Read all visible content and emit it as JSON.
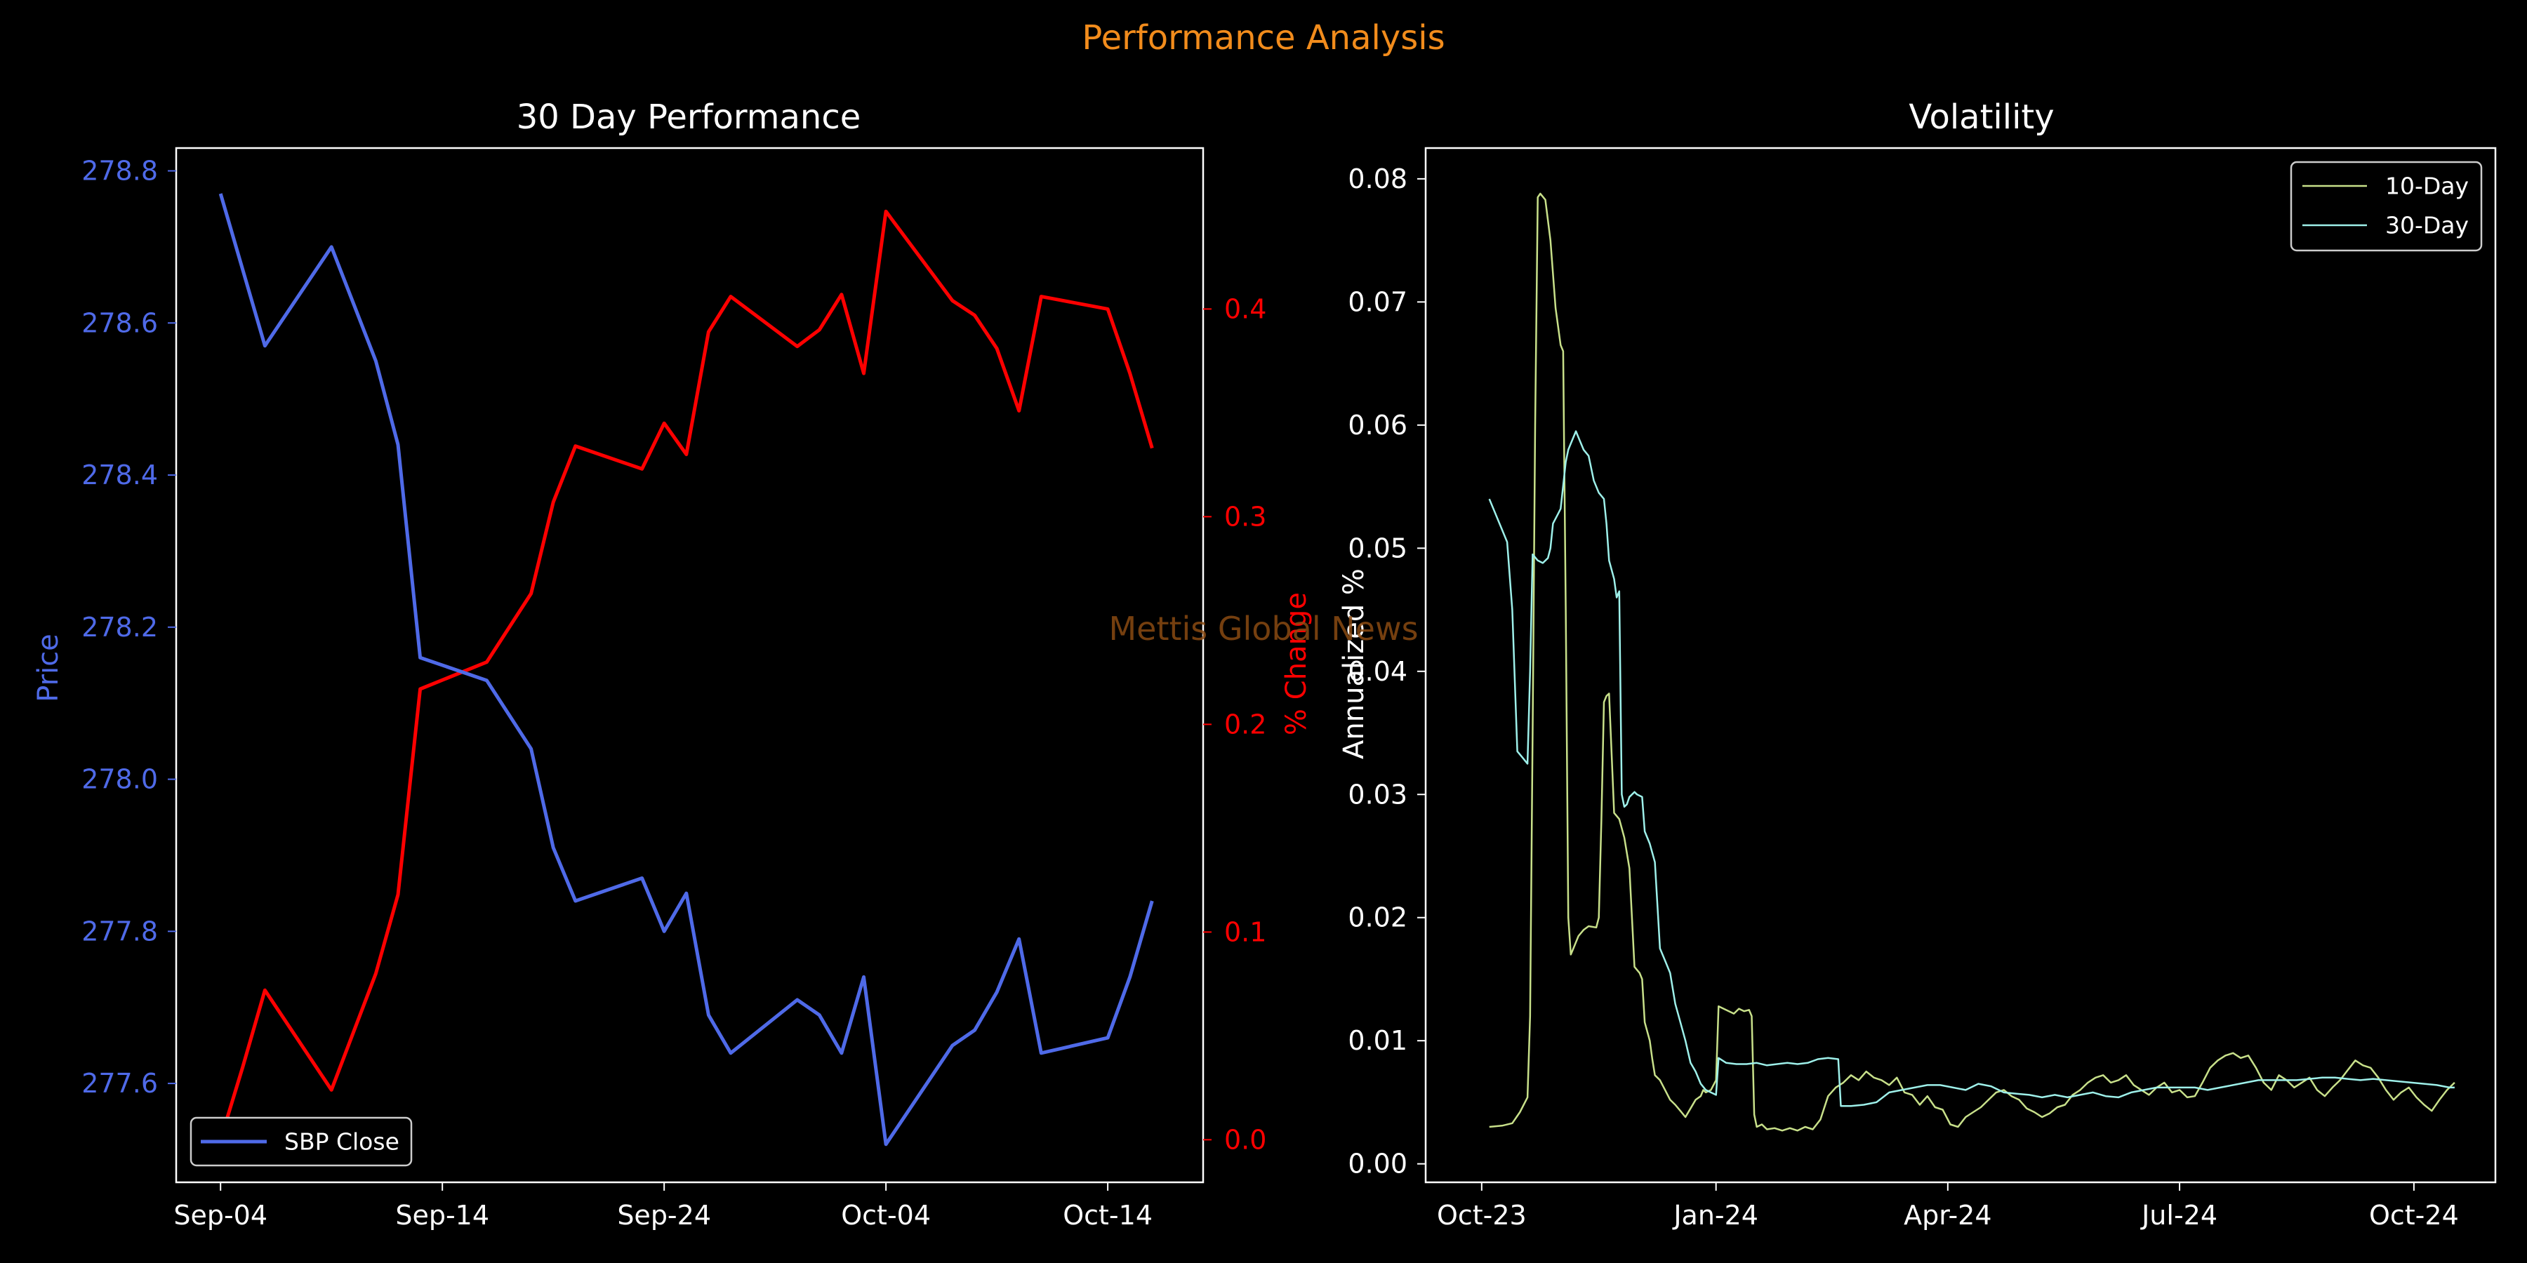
{
  "suptitle": "Performance Analysis",
  "watermark": "Mettis Global News",
  "colors": {
    "background": "#000000",
    "foreground": "#ffffff",
    "suptitle": "#f28c1c",
    "price": "#4f6ae8",
    "change": "#ff0000",
    "watermark": "#8a4a12",
    "vol10": "#c8e08a",
    "vol30": "#9ef0ea"
  },
  "chart_data": [
    {
      "type": "line",
      "title": "30 Day Performance",
      "xlabel": "",
      "ylabel": "Price",
      "ylabel_right": "% Change",
      "x_ticks": [
        "Sep-04",
        "Sep-14",
        "Sep-24",
        "Oct-04",
        "Oct-14"
      ],
      "x_tick_days": [
        0,
        10,
        20,
        30,
        40
      ],
      "x_range_days": [
        -2,
        44.3
      ],
      "x_origin_label": "Sep-04",
      "ylim": [
        277.47,
        278.83
      ],
      "yticks": [
        277.6,
        277.8,
        278.0,
        278.2,
        278.4,
        278.6,
        278.8
      ],
      "ylim_right": [
        -0.0205,
        0.4775
      ],
      "yticks_right": [
        0.0,
        0.1,
        0.2,
        0.3,
        0.4
      ],
      "legend": {
        "position": "lower-left",
        "entries": [
          "SBP Close"
        ]
      },
      "series": [
        {
          "name": "SBP Close",
          "axis": "left",
          "x": [
            0,
            1,
            2,
            5,
            7,
            8,
            9,
            12,
            14,
            15,
            16,
            19,
            20,
            21,
            22,
            23,
            26,
            27,
            28,
            29,
            30,
            33,
            34,
            35,
            36,
            37,
            40,
            41,
            42
          ],
          "values": [
            278.77,
            278.67,
            278.57,
            278.7,
            278.55,
            278.44,
            278.16,
            278.13,
            278.04,
            277.91,
            277.84,
            277.87,
            277.8,
            277.85,
            277.69,
            277.64,
            277.71,
            277.69,
            277.64,
            277.74,
            277.52,
            277.65,
            277.67,
            277.72,
            277.79,
            277.64,
            277.66,
            277.74,
            277.84
          ]
        },
        {
          "name": "% Change",
          "axis": "right",
          "x": [
            0,
            1,
            2,
            5,
            7,
            8,
            9,
            12,
            14,
            15,
            16,
            19,
            20,
            21,
            22,
            23,
            26,
            27,
            28,
            29,
            30,
            33,
            34,
            35,
            36,
            37,
            40,
            41,
            42
          ],
          "values": [
            0.0,
            0.035,
            0.072,
            0.024,
            0.08,
            0.118,
            0.217,
            0.23,
            0.263,
            0.307,
            0.334,
            0.323,
            0.345,
            0.33,
            0.389,
            0.406,
            0.382,
            0.39,
            0.407,
            0.369,
            0.447,
            0.404,
            0.397,
            0.381,
            0.351,
            0.406,
            0.4,
            0.369,
            0.333
          ]
        }
      ]
    },
    {
      "type": "line",
      "title": "Volatility",
      "xlabel": "",
      "ylabel": "Annualized %",
      "x_ticks": [
        "Oct-23",
        "Jan-24",
        "Apr-24",
        "Jul-24",
        "Oct-24"
      ],
      "x_tick_days": [
        0,
        92,
        183,
        274,
        366
      ],
      "x_range_days": [
        -22,
        398
      ],
      "x_origin_label": "Oct-23",
      "ylim": [
        -0.0015,
        0.0825
      ],
      "yticks": [
        0.0,
        0.01,
        0.02,
        0.03,
        0.04,
        0.05,
        0.06,
        0.07,
        0.08
      ],
      "legend": {
        "position": "top-right",
        "entries": [
          "10-Day",
          "30-Day"
        ]
      },
      "series": [
        {
          "name": "10-Day",
          "x": [
            3,
            8,
            12,
            15,
            18,
            19,
            20,
            21,
            22,
            23,
            25,
            27,
            29,
            31,
            32,
            33,
            34,
            35,
            36,
            37,
            38,
            40,
            42,
            45,
            46,
            47,
            48,
            49,
            50,
            52,
            54,
            56,
            58,
            59,
            60,
            62,
            63,
            64,
            66,
            67,
            68,
            70,
            72,
            74,
            76,
            78,
            80,
            82,
            84,
            86,
            87,
            88,
            90,
            92,
            93,
            95,
            97,
            99,
            101,
            103,
            105,
            106,
            107,
            108,
            110,
            112,
            115,
            118,
            121,
            124,
            127,
            130,
            133,
            136,
            139,
            142,
            145,
            148,
            151,
            154,
            157,
            160,
            163,
            166,
            169,
            172,
            175,
            178,
            181,
            184,
            187,
            190,
            193,
            196,
            199,
            202,
            205,
            208,
            211,
            214,
            217,
            220,
            223,
            226,
            229,
            232,
            235,
            238,
            241,
            244,
            247,
            250,
            253,
            256,
            259,
            262,
            265,
            268,
            271,
            274,
            277,
            280,
            283,
            286,
            289,
            292,
            295,
            298,
            301,
            304,
            307,
            310,
            313,
            316,
            319,
            322,
            325,
            328,
            331,
            334,
            337,
            340,
            343,
            346,
            349,
            352,
            355,
            358,
            361,
            364,
            367,
            370,
            373,
            376,
            379,
            382
          ],
          "values": [
            0.003,
            0.0031,
            0.0033,
            0.0042,
            0.0054,
            0.012,
            0.035,
            0.06,
            0.0785,
            0.0788,
            0.0783,
            0.075,
            0.0695,
            0.0665,
            0.066,
            0.045,
            0.02,
            0.017,
            0.0175,
            0.018,
            0.0185,
            0.019,
            0.0193,
            0.0192,
            0.02,
            0.028,
            0.0375,
            0.038,
            0.0382,
            0.0285,
            0.028,
            0.0265,
            0.024,
            0.02,
            0.016,
            0.0155,
            0.015,
            0.0115,
            0.01,
            0.0085,
            0.0072,
            0.0068,
            0.006,
            0.0052,
            0.0048,
            0.0043,
            0.0038,
            0.0045,
            0.0052,
            0.0055,
            0.006,
            0.0058,
            0.006,
            0.0068,
            0.0128,
            0.0126,
            0.0124,
            0.0122,
            0.0126,
            0.0124,
            0.0125,
            0.012,
            0.004,
            0.003,
            0.0032,
            0.0028,
            0.0029,
            0.0027,
            0.0029,
            0.0027,
            0.003,
            0.0028,
            0.0036,
            0.0055,
            0.0062,
            0.0066,
            0.0072,
            0.0068,
            0.0075,
            0.007,
            0.0068,
            0.0064,
            0.007,
            0.0058,
            0.0056,
            0.0048,
            0.0055,
            0.0046,
            0.0044,
            0.0032,
            0.003,
            0.0038,
            0.0042,
            0.0046,
            0.0052,
            0.0058,
            0.006,
            0.0055,
            0.0052,
            0.0045,
            0.0042,
            0.0038,
            0.0041,
            0.0046,
            0.0048,
            0.0056,
            0.006,
            0.0066,
            0.007,
            0.0072,
            0.0066,
            0.0068,
            0.0072,
            0.0064,
            0.006,
            0.0056,
            0.0062,
            0.0066,
            0.0058,
            0.006,
            0.0054,
            0.0055,
            0.0066,
            0.0078,
            0.0084,
            0.0088,
            0.009,
            0.0086,
            0.0088,
            0.0078,
            0.0066,
            0.006,
            0.0072,
            0.0068,
            0.0062,
            0.0066,
            0.007,
            0.006,
            0.0055,
            0.0062,
            0.0068,
            0.0076,
            0.0084,
            0.008,
            0.0078,
            0.007,
            0.006,
            0.0052,
            0.0058,
            0.0062,
            0.0054,
            0.0048,
            0.0043,
            0.0052,
            0.006,
            0.0066
          ]
        },
        {
          "name": "30-Day",
          "x": [
            3,
            5,
            8,
            10,
            12,
            14,
            16,
            18,
            19,
            20,
            22,
            24,
            26,
            27,
            28,
            30,
            31,
            33,
            34,
            35,
            37,
            38,
            40,
            42,
            44,
            46,
            48,
            49,
            50,
            52,
            53,
            54,
            55,
            56,
            57,
            58,
            59,
            60,
            61,
            62,
            63,
            64,
            66,
            68,
            70,
            72,
            74,
            76,
            78,
            80,
            82,
            84,
            86,
            88,
            90,
            92,
            93,
            96,
            100,
            104,
            108,
            112,
            116,
            120,
            124,
            128,
            132,
            136,
            140,
            141,
            145,
            150,
            155,
            160,
            165,
            170,
            175,
            180,
            185,
            190,
            195,
            200,
            205,
            210,
            215,
            220,
            225,
            230,
            235,
            240,
            245,
            250,
            255,
            260,
            265,
            270,
            275,
            280,
            285,
            290,
            295,
            300,
            305,
            310,
            315,
            320,
            325,
            330,
            335,
            340,
            345,
            350,
            355,
            360,
            365,
            370,
            375,
            380,
            382
          ],
          "values": [
            0.054,
            0.053,
            0.0515,
            0.0505,
            0.045,
            0.0335,
            0.033,
            0.0325,
            0.04,
            0.0495,
            0.049,
            0.0488,
            0.0492,
            0.05,
            0.052,
            0.0528,
            0.0532,
            0.057,
            0.058,
            0.0585,
            0.0595,
            0.059,
            0.058,
            0.0575,
            0.0555,
            0.0545,
            0.054,
            0.052,
            0.049,
            0.0475,
            0.046,
            0.0465,
            0.03,
            0.029,
            0.0292,
            0.0298,
            0.03,
            0.0302,
            0.03,
            0.0299,
            0.0298,
            0.027,
            0.026,
            0.0245,
            0.0175,
            0.0165,
            0.0155,
            0.013,
            0.0115,
            0.01,
            0.0082,
            0.0075,
            0.0065,
            0.006,
            0.0058,
            0.0056,
            0.0086,
            0.0082,
            0.0081,
            0.0081,
            0.0082,
            0.008,
            0.0081,
            0.0082,
            0.0081,
            0.0082,
            0.0085,
            0.0086,
            0.0085,
            0.0047,
            0.0047,
            0.0048,
            0.005,
            0.0058,
            0.006,
            0.0062,
            0.0064,
            0.0064,
            0.0062,
            0.006,
            0.0065,
            0.0063,
            0.0058,
            0.0057,
            0.0056,
            0.0054,
            0.0056,
            0.0054,
            0.0056,
            0.0058,
            0.0055,
            0.0054,
            0.0058,
            0.006,
            0.0062,
            0.0062,
            0.0062,
            0.0062,
            0.006,
            0.0062,
            0.0064,
            0.0066,
            0.0068,
            0.0068,
            0.0068,
            0.0068,
            0.0069,
            0.007,
            0.007,
            0.0069,
            0.0068,
            0.0069,
            0.0068,
            0.0067,
            0.0066,
            0.0065,
            0.0064,
            0.0062,
            0.0062
          ]
        }
      ]
    }
  ]
}
